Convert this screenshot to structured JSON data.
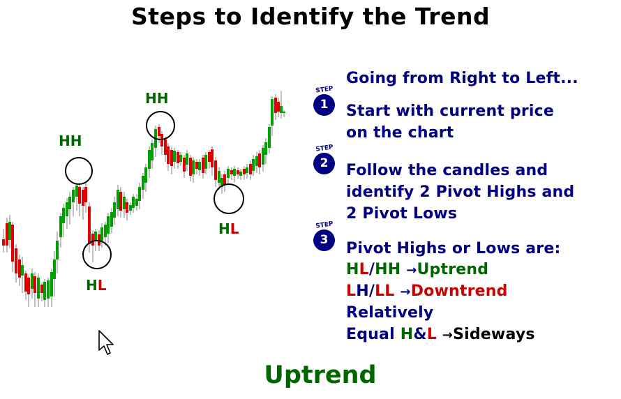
{
  "title": "Steps to Identify the Trend",
  "pivot_labels": [
    {
      "first": "HH",
      "second": ""
    },
    {
      "first": "H",
      "second": "L"
    },
    {
      "first": "HH",
      "second": ""
    },
    {
      "first": "H",
      "second": "L"
    }
  ],
  "step_word": "STEP",
  "steps": [
    {
      "number": "1",
      "lines": [
        [
          "Going from Right to Left..."
        ],
        [
          "Start with current price"
        ],
        [
          "on the chart"
        ]
      ]
    },
    {
      "number": "2",
      "lines": [
        [
          "Follow the candles and"
        ],
        [
          "identify 2 Pivot Highs and"
        ],
        [
          "2 Pivot Lows"
        ]
      ]
    },
    {
      "number": "3"
    }
  ],
  "step3": {
    "heading": "Pivot Highs or Lows are:",
    "uptrend": {
      "a": "H",
      "b": "L",
      "slash": "/",
      "c": "HH",
      "arrow": "→",
      "result": "Uptrend"
    },
    "downtrend": {
      "a": "L",
      "b": "H",
      "slash": "/",
      "c": "LL",
      "arrow": "→",
      "result": "Downtrend"
    },
    "relatively": "Relatively",
    "sideways": {
      "equal": "Equal",
      "h": "H",
      "amp": "&",
      "l": "L",
      "arrow": "→",
      "result": "Sideways"
    }
  },
  "bottom_label": "Uptrend",
  "colors": {
    "bull": "#00a000",
    "bear": "#e00000",
    "navy": "#000080",
    "pivot_green": "#006600",
    "pivot_red": "#cc0000"
  }
}
